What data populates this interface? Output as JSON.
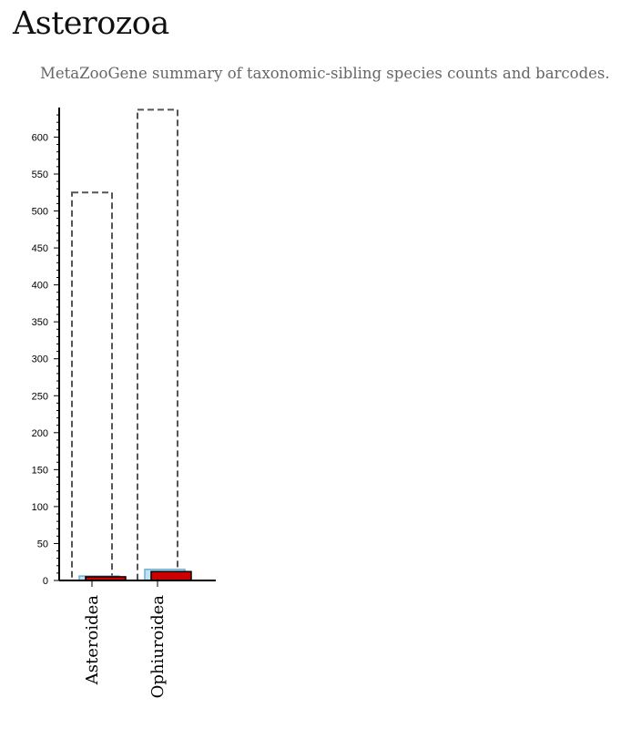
{
  "header": {
    "title": "Asterozoa",
    "subtitle": "MetaZooGene summary of taxonomic-sibling species counts and barcodes."
  },
  "chart_data": {
    "type": "bar",
    "categories": [
      "Asteroidea",
      "Ophiuroidea"
    ],
    "series": [
      {
        "values": [
          525,
          637
        ],
        "color": "#555555",
        "style": "dashed-outline"
      },
      {
        "values": [
          6,
          15
        ],
        "color": "#bfe3f5",
        "style": "light-blue-fill"
      },
      {
        "values": [
          5,
          12
        ],
        "color": "#cc0000",
        "style": "red-fill"
      }
    ],
    "yticks": [
      0,
      50,
      100,
      150,
      200,
      250,
      300,
      350,
      400,
      450,
      500,
      550,
      600
    ],
    "ylim": [
      0,
      640
    ],
    "grid": false
  }
}
